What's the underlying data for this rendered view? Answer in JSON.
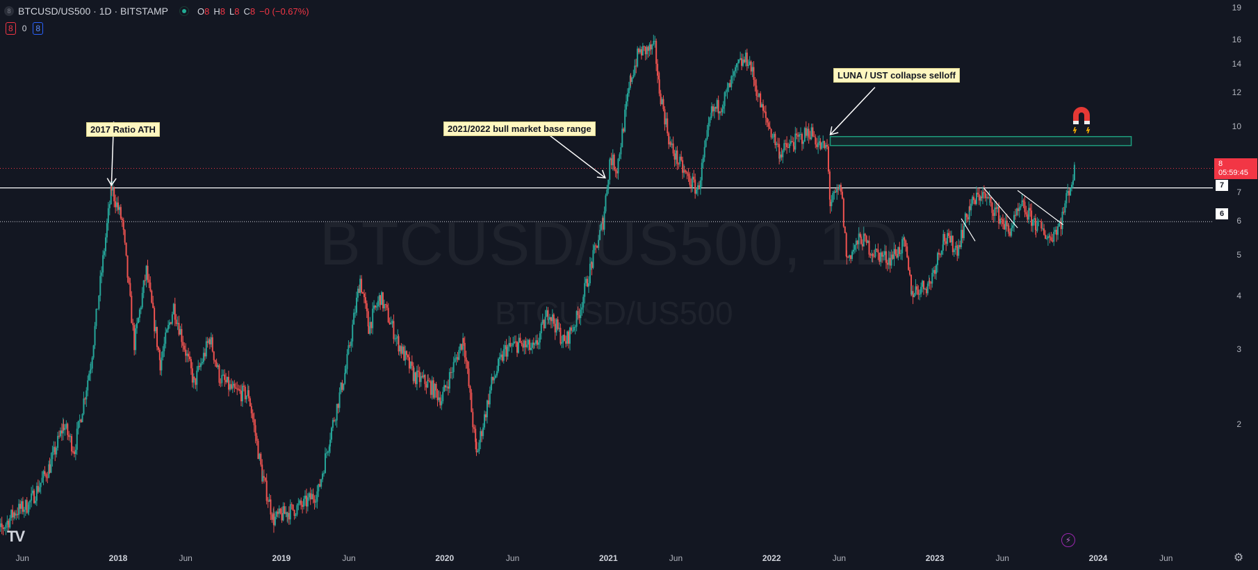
{
  "header": {
    "symbol_dot": "8",
    "title": "BTCUSD/US500 · 1D · BITSTAMP",
    "ohlc": [
      {
        "key": "O",
        "value": "8"
      },
      {
        "key": "H",
        "value": "8"
      },
      {
        "key": "L",
        "value": "8"
      },
      {
        "key": "C",
        "value": "8"
      },
      {
        "key": "",
        "value": "−0 (−0.67%)"
      }
    ]
  },
  "badges": {
    "left": "8",
    "middle": "0",
    "right": "8"
  },
  "watermark": {
    "main": "BTCUSD/US500, 1D",
    "sub": "BTCUSD/US500"
  },
  "annotations": {
    "ath": "2017 Ratio ATH",
    "base_range": "2021/2022 bull market base range",
    "luna": "LUNA / UST collapse selloff"
  },
  "price_axis": {
    "current_price": "8",
    "countdown": "05:59:45",
    "level_7": "7",
    "level_6": "6"
  },
  "icons": {
    "magnet": "magnet-icon",
    "logo": "tradingview-logo",
    "settings": "gear-icon",
    "bolt": "lightning-icon"
  },
  "colors": {
    "background": "#131722",
    "up": "#26a69a",
    "down": "#ef5350",
    "zone": "#1e9e7e",
    "price_red": "#f23645"
  },
  "chart_data": {
    "type": "candlestick",
    "scale": "log",
    "ylim": [
      1.0,
      19.5
    ],
    "y_ticks": [
      {
        "label": "19",
        "value": 19
      },
      {
        "label": "16",
        "value": 16
      },
      {
        "label": "14",
        "value": 14
      },
      {
        "label": "12",
        "value": 12
      },
      {
        "label": "10",
        "value": 10
      },
      {
        "label": "8",
        "value": 8
      },
      {
        "label": "7",
        "value": 7
      },
      {
        "label": "6",
        "value": 6
      },
      {
        "label": "5",
        "value": 5
      },
      {
        "label": "4",
        "value": 4
      },
      {
        "label": "3",
        "value": 3
      },
      {
        "label": "2",
        "value": 2
      }
    ],
    "x_ticks": [
      {
        "label": "Jun",
        "date": "2017-06-01",
        "year": false
      },
      {
        "label": "2018",
        "date": "2018-01-01",
        "year": true
      },
      {
        "label": "Jun",
        "date": "2018-06-01",
        "year": false
      },
      {
        "label": "2019",
        "date": "2019-01-01",
        "year": true
      },
      {
        "label": "Jun",
        "date": "2019-06-01",
        "year": false
      },
      {
        "label": "2020",
        "date": "2020-01-01",
        "year": true
      },
      {
        "label": "Jun",
        "date": "2020-06-01",
        "year": false
      },
      {
        "label": "2021",
        "date": "2021-01-01",
        "year": true
      },
      {
        "label": "Jun",
        "date": "2021-06-01",
        "year": false
      },
      {
        "label": "2022",
        "date": "2022-01-01",
        "year": true
      },
      {
        "label": "Jun",
        "date": "2022-06-01",
        "year": false
      },
      {
        "label": "2023",
        "date": "2023-01-01",
        "year": true
      },
      {
        "label": "Jun",
        "date": "2023-06-01",
        "year": false
      },
      {
        "label": "2024",
        "date": "2024-01-01",
        "year": true
      },
      {
        "label": "Jun",
        "date": "2024-06-01",
        "year": false
      }
    ],
    "price_path": [
      [
        "2017-03-20",
        1.05
      ],
      [
        "2017-05-15",
        1.25
      ],
      [
        "2017-06-15",
        1.3
      ],
      [
        "2017-08-01",
        1.6
      ],
      [
        "2017-09-01",
        2.0
      ],
      [
        "2017-09-25",
        1.75
      ],
      [
        "2017-11-01",
        2.8
      ],
      [
        "2017-12-17",
        7.2
      ],
      [
        "2018-01-10",
        6.0
      ],
      [
        "2018-02-06",
        3.1
      ],
      [
        "2018-03-05",
        4.6
      ],
      [
        "2018-04-05",
        2.8
      ],
      [
        "2018-05-05",
        3.8
      ],
      [
        "2018-06-20",
        2.5
      ],
      [
        "2018-07-25",
        3.2
      ],
      [
        "2018-08-15",
        2.6
      ],
      [
        "2018-09-15",
        2.4
      ],
      [
        "2018-10-20",
        2.35
      ],
      [
        "2018-11-20",
        1.5
      ],
      [
        "2018-12-15",
        1.2
      ],
      [
        "2019-01-15",
        1.25
      ],
      [
        "2019-02-20",
        1.3
      ],
      [
        "2019-03-25",
        1.4
      ],
      [
        "2019-04-20",
        1.9
      ],
      [
        "2019-05-25",
        2.7
      ],
      [
        "2019-06-26",
        4.4
      ],
      [
        "2019-07-15",
        3.4
      ],
      [
        "2019-08-10",
        4.0
      ],
      [
        "2019-09-20",
        3.1
      ],
      [
        "2019-10-25",
        2.6
      ],
      [
        "2019-11-25",
        2.5
      ],
      [
        "2019-12-25",
        2.3
      ],
      [
        "2020-02-12",
        3.2
      ],
      [
        "2020-03-12",
        1.7
      ],
      [
        "2020-04-15",
        2.5
      ],
      [
        "2020-05-15",
        3.0
      ],
      [
        "2020-06-15",
        3.1
      ],
      [
        "2020-07-20",
        3.0
      ],
      [
        "2020-08-20",
        3.7
      ],
      [
        "2020-09-25",
        3.1
      ],
      [
        "2020-10-25",
        3.6
      ],
      [
        "2020-11-25",
        4.8
      ],
      [
        "2020-12-20",
        6.0
      ],
      [
        "2021-01-05",
        8.5
      ],
      [
        "2021-01-20",
        8.0
      ],
      [
        "2021-02-20",
        13.0
      ],
      [
        "2021-03-10",
        15.0
      ],
      [
        "2021-04-15",
        15.3
      ],
      [
        "2021-04-25",
        12.3
      ],
      [
        "2021-05-20",
        9.0
      ],
      [
        "2021-06-20",
        7.8
      ],
      [
        "2021-07-20",
        7.1
      ],
      [
        "2021-08-20",
        10.8
      ],
      [
        "2021-09-15",
        11.5
      ],
      [
        "2021-10-20",
        14.0
      ],
      [
        "2021-11-10",
        14.5
      ],
      [
        "2021-12-10",
        11.0
      ],
      [
        "2022-01-20",
        8.7
      ],
      [
        "2022-02-20",
        9.2
      ],
      [
        "2022-03-28",
        9.8
      ],
      [
        "2022-04-20",
        9.0
      ],
      [
        "2022-05-05",
        8.9
      ],
      [
        "2022-05-12",
        6.6
      ],
      [
        "2022-06-05",
        7.2
      ],
      [
        "2022-06-18",
        4.9
      ],
      [
        "2022-07-20",
        5.5
      ],
      [
        "2022-08-15",
        5.1
      ],
      [
        "2022-09-20",
        4.9
      ],
      [
        "2022-10-25",
        5.3
      ],
      [
        "2022-11-10",
        4.1
      ],
      [
        "2022-12-20",
        4.3
      ],
      [
        "2023-01-20",
        5.5
      ],
      [
        "2023-02-20",
        5.2
      ],
      [
        "2023-03-20",
        6.5
      ],
      [
        "2023-04-15",
        7.0
      ],
      [
        "2023-05-15",
        6.4
      ],
      [
        "2023-06-15",
        5.7
      ],
      [
        "2023-07-15",
        6.5
      ],
      [
        "2023-08-15",
        5.9
      ],
      [
        "2023-09-15",
        5.5
      ],
      [
        "2023-10-10",
        6.0
      ],
      [
        "2023-10-25",
        7.0
      ],
      [
        "2023-11-12",
        8.0
      ]
    ],
    "levels": [
      {
        "name": "2017 ATH level",
        "value": 7.2,
        "style": "solid"
      },
      {
        "name": "level 6",
        "value": 6.0,
        "style": "dotted"
      },
      {
        "name": "current price",
        "value": 8.0,
        "style": "dotted-red"
      }
    ],
    "zone": {
      "from": "2022-05-12",
      "to": "2024-03-15",
      "low": 9.05,
      "high": 9.5
    }
  }
}
